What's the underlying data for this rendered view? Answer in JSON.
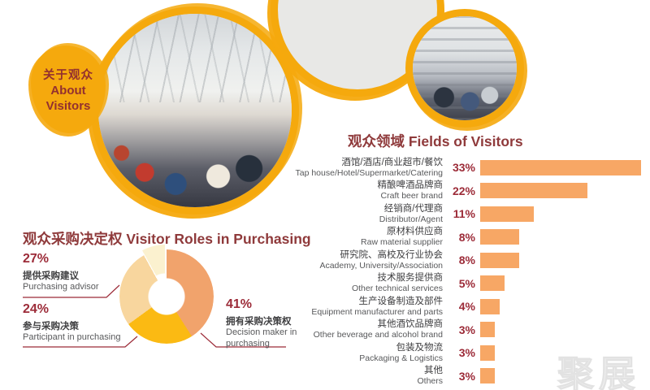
{
  "badge": {
    "line1": "关于观众",
    "line2": "About",
    "line3": "Visitors"
  },
  "bar_chart": {
    "title": "观众领域 Fields of Visitors",
    "rows": [
      {
        "zh": "酒馆/酒店/商业超市/餐饮",
        "en": "Tap house/Hotel/Supermarket/Catering",
        "pct": "33%",
        "value": 33
      },
      {
        "zh": "精酿啤酒品牌商",
        "en": "Craft beer brand",
        "pct": "22%",
        "value": 22
      },
      {
        "zh": "经销商/代理商",
        "en": "Distributor/Agent",
        "pct": "11%",
        "value": 11
      },
      {
        "zh": "原材料供应商",
        "en": "Raw material supplier",
        "pct": "8%",
        "value": 8
      },
      {
        "zh": "研究院、高校及行业协会",
        "en": "Academy, University/Association",
        "pct": "8%",
        "value": 8
      },
      {
        "zh": "技术服务提供商",
        "en": "Other technical services",
        "pct": "5%",
        "value": 5
      },
      {
        "zh": "生产设备制造及部件",
        "en": "Equipment manufacturer and parts",
        "pct": "4%",
        "value": 4
      },
      {
        "zh": "其他酒饮品牌商",
        "en": "Other beverage and alcohol brand",
        "pct": "3%",
        "value": 3
      },
      {
        "zh": "包装及物流",
        "en": "Packaging & Logistics",
        "pct": "3%",
        "value": 3
      },
      {
        "zh": "其他",
        "en": "Others",
        "pct": "3%",
        "value": 3
      }
    ]
  },
  "donut_chart": {
    "title": "观众采购决定权 Visitor Roles in Purchasing",
    "slices": [
      {
        "pct": "41%",
        "value": 41,
        "zh": "拥有采购决策权",
        "en": "Decision maker in purchasing",
        "color": "#F1A36C",
        "exploded": false
      },
      {
        "pct": "24%",
        "value": 24,
        "zh": "参与采购决策",
        "en": "Participant in purchasing",
        "color": "#FBBA13",
        "exploded": false
      },
      {
        "pct": "27%",
        "value": 27,
        "zh": "提供采购建议",
        "en": "Purchasing advisor",
        "color": "#F8D69E",
        "exploded": false
      },
      {
        "pct": "8%",
        "value": 8,
        "zh": "",
        "en": "",
        "color": "#FBF1CF",
        "exploded": true
      }
    ]
  },
  "watermark": "聚展",
  "colors": {
    "accent_yellow": "#F5A90D",
    "title_red": "#8F3A3B",
    "percent_red": "#9C2B38",
    "bar_orange": "#F7A765",
    "donut_orange": "#F1A36C",
    "donut_gold": "#FBBA13",
    "donut_peach": "#F8D69E",
    "donut_cream": "#FBF1CF",
    "label_dark": "#3E3E40",
    "label_gray": "#58595B"
  },
  "chart_data": [
    {
      "type": "bar",
      "orientation": "horizontal",
      "title": "观众领域 Fields of Visitors",
      "categories": [
        "酒馆/酒店/商业超市/餐饮 Tap house/Hotel/Supermarket/Catering",
        "精酿啤酒品牌商 Craft beer brand",
        "经销商/代理商 Distributor/Agent",
        "原材料供应商 Raw material supplier",
        "研究院、高校及行业协会 Academy, University/Association",
        "技术服务提供商 Other technical services",
        "生产设备制造及部件 Equipment manufacturer and parts",
        "其他酒饮品牌商 Other beverage and alcohol brand",
        "包装及物流 Packaging & Logistics",
        "其他 Others"
      ],
      "values": [
        33,
        22,
        11,
        8,
        8,
        5,
        4,
        3,
        3,
        3
      ],
      "unit": "%",
      "xlim": [
        0,
        33
      ],
      "grid": false,
      "bar_color": "#F7A765",
      "data_labels": [
        "33%",
        "22%",
        "11%",
        "8%",
        "8%",
        "5%",
        "4%",
        "3%",
        "3%",
        "3%"
      ]
    },
    {
      "type": "pie",
      "subtype": "donut",
      "title": "观众采购决定权 Visitor Roles in Purchasing",
      "labels": [
        "拥有采购决策权 Decision maker in purchasing",
        "参与采购决策 Participant in purchasing",
        "提供采购建议 Purchasing advisor",
        ""
      ],
      "values": [
        41,
        24,
        27,
        8
      ],
      "unit": "%",
      "colors": [
        "#F1A36C",
        "#FBBA13",
        "#F8D69E",
        "#FBF1CF"
      ],
      "start_angle_deg": 0,
      "direction": "clockwise",
      "exploded_slice_index": 3
    }
  ]
}
